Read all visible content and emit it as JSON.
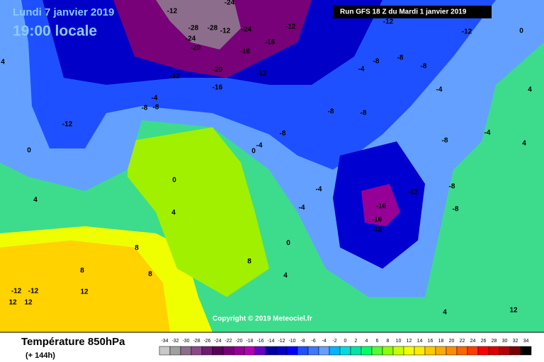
{
  "header": {
    "date": "Lundi 7 janvier 2019",
    "time": "19:00 locale",
    "run": "Run GFS 18 Z du Mardi 1 janvier 2019"
  },
  "copyright": "Copyright © 2019 Meteociel.fr",
  "footer": {
    "title": "Température 850hPa",
    "lead": "(+ 144h)"
  },
  "legend": {
    "values": [
      -34,
      -32,
      -30,
      -28,
      -26,
      -24,
      -22,
      -20,
      -18,
      -16,
      -14,
      -12,
      -10,
      -8,
      -6,
      -4,
      -2,
      0,
      2,
      4,
      6,
      8,
      10,
      12,
      14,
      16,
      18,
      20,
      22,
      24,
      26,
      28,
      30,
      32,
      34
    ],
    "colors": [
      "#c8c8c8",
      "#a0a0a0",
      "#8c6e8c",
      "#8a4a8a",
      "#6e1e6e",
      "#5a005a",
      "#780078",
      "#960096",
      "#b400b4",
      "#6400c8",
      "#0000a0",
      "#0000c8",
      "#0000ff",
      "#1e50ff",
      "#3c78ff",
      "#64a0ff",
      "#00b4ff",
      "#00dcdc",
      "#00e6a0",
      "#00ff64",
      "#50ff32",
      "#8cff00",
      "#c8ff00",
      "#f0ff00",
      "#ffeb00",
      "#ffc800",
      "#ffaa00",
      "#ff8c00",
      "#ff6400",
      "#ff3c00",
      "#ff0000",
      "#dc0000",
      "#b40000",
      "#780000",
      "#000000"
    ]
  },
  "map_labels": [
    "-12",
    "-24",
    "-28",
    "-24",
    "-28",
    "-12",
    "-24",
    "-20",
    "-16",
    "-16",
    "-12",
    "-12",
    "-12",
    "-20",
    "-12",
    "-12",
    "-16",
    "-12",
    "-8",
    "-4",
    "-8",
    "-8",
    "-4",
    "-8",
    "-8",
    "-4",
    "-8",
    "-8",
    "-8",
    "-8",
    "-4",
    "-4",
    "0",
    "0",
    "4",
    "0",
    "-12",
    "-8",
    "-16",
    "-16",
    "-12",
    "-8",
    "-4",
    "-4",
    "0",
    "4",
    "8",
    "8",
    "8",
    "12",
    "-12",
    "-12",
    "12",
    "12",
    "8",
    "4",
    "4",
    "12",
    "4",
    "4",
    "0",
    "4"
  ]
}
